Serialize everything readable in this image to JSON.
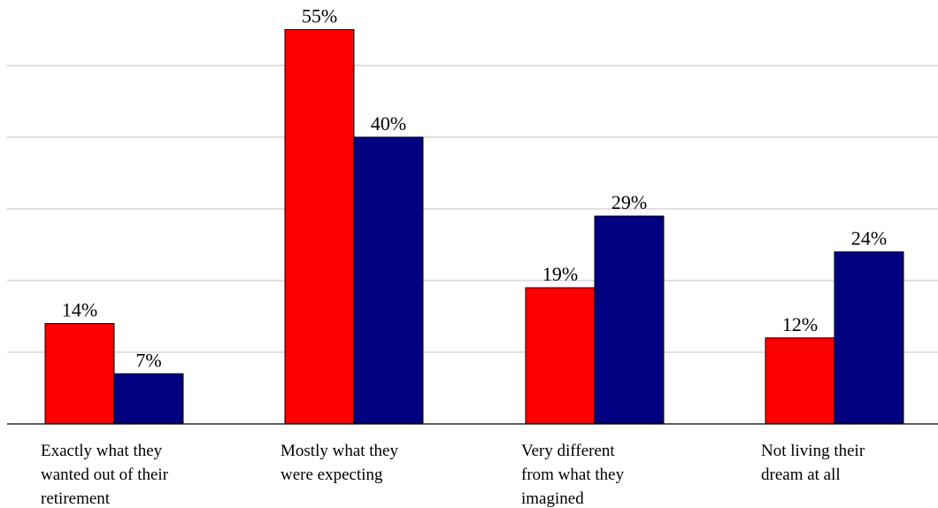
{
  "chart_data": {
    "type": "bar",
    "categories": [
      [
        "Exactly what they",
        "wanted out of their",
        "retirement"
      ],
      [
        "Mostly what they",
        "were expecting"
      ],
      [
        "Very different",
        "from what they",
        "imagined"
      ],
      [
        "Not living their",
        "dream at all"
      ]
    ],
    "series": [
      {
        "color": "#ff0000",
        "values": [
          14,
          55,
          19,
          12
        ],
        "labels": [
          "14%",
          "55%",
          "19%",
          "12%"
        ]
      },
      {
        "color": "#000080",
        "values": [
          7,
          40,
          29,
          24
        ],
        "labels": [
          "7%",
          "40%",
          "29%",
          "24%"
        ]
      }
    ],
    "ylim": [
      0,
      60
    ],
    "gridlines": [
      10,
      20,
      30,
      40,
      50
    ],
    "grid": true,
    "legend": "none"
  }
}
